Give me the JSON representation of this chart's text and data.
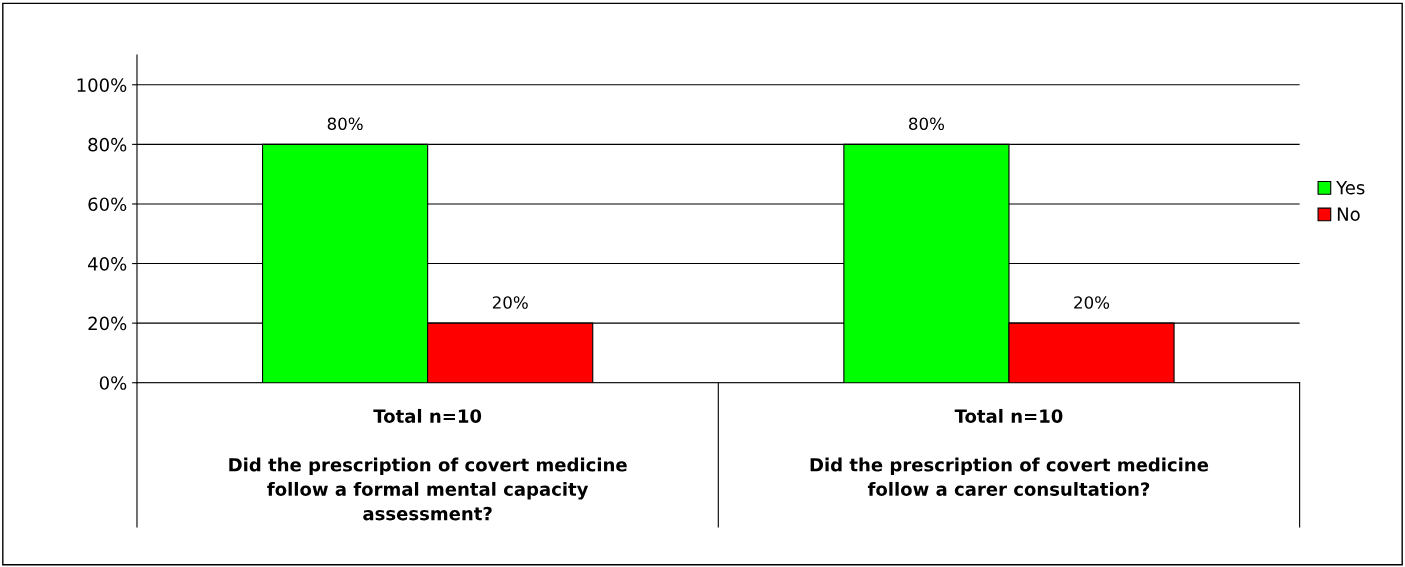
{
  "chart_data": {
    "type": "bar",
    "categories": [
      "Total n=10\n\nDid the prescription of covert medicine\nfollow a formal mental capacity\nassessment?",
      "Total n=10\n\nDid the prescription of covert medicine\nfollow a carer consultation?"
    ],
    "series": [
      {
        "name": "Yes",
        "color": "#00ff00",
        "values": [
          80,
          80
        ]
      },
      {
        "name": "No",
        "color": "#ff0000",
        "values": [
          20,
          20
        ]
      }
    ],
    "ylim": [
      0,
      110
    ],
    "yticks": [
      {
        "value": 0,
        "label": "0%"
      },
      {
        "value": 20,
        "label": "20%"
      },
      {
        "value": 40,
        "label": "40%"
      },
      {
        "value": 60,
        "label": "60%"
      },
      {
        "value": 80,
        "label": "80%"
      },
      {
        "value": 100,
        "label": "100%"
      }
    ],
    "value_labels": [
      [
        "80%",
        "80%"
      ],
      [
        "20%",
        "20%"
      ]
    ],
    "grid": "y",
    "legend": "right"
  }
}
